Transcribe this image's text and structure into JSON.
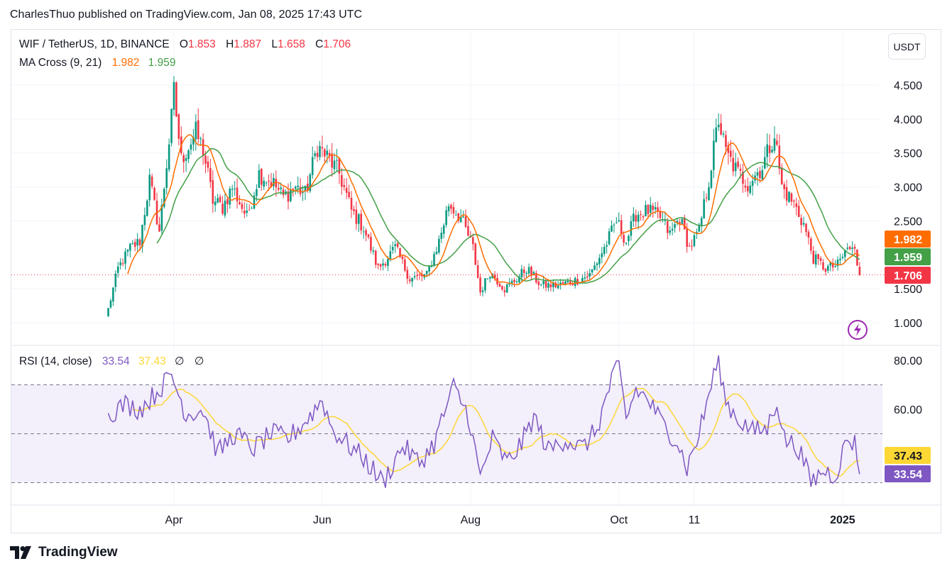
{
  "header": {
    "publish_line": "CharlesThuo published on TradingView.com, Jan 08, 2025 17:43 UTC"
  },
  "legend": {
    "symbol": "WIF / TetherUS, 1D, BINANCE",
    "o_label": "O",
    "o_value": "1.853",
    "h_label": "H",
    "h_value": "1.887",
    "l_label": "L",
    "l_value": "1.658",
    "c_label": "C",
    "c_value": "1.706",
    "ma_label": "MA Cross (9, 21)",
    "ma_fast": "1.982",
    "ma_slow": "1.959",
    "rsi_label": "RSI (14, close)",
    "rsi_value": "33.54",
    "rsi_ma": "37.43",
    "rsi_extra1": "∅",
    "rsi_extra2": "∅"
  },
  "currency_button": "USDT",
  "footer": {
    "brand": "TradingView",
    "logo_icon": "tradingview-logo-icon"
  },
  "colors": {
    "up": "#089981",
    "down": "#f23645",
    "ma_fast": "#ff6d00",
    "ma_slow": "#43a047",
    "rsi": "#7e57c2",
    "rsi_ma": "#fdd835",
    "rsi_band": "#f3effb"
  },
  "chart_data": [
    {
      "type": "candlestick",
      "title": "WIF / TetherUS, 1D, BINANCE",
      "x_ticks": [
        "Apr",
        "Jun",
        "Aug",
        "Oct",
        "11",
        "2025"
      ],
      "x_tick_dates": [
        "2024-04-01",
        "2024-06-01",
        "2024-08-01",
        "2024-10-01",
        "2024-11-01",
        "2025-01-01"
      ],
      "y_ticks": [
        "1.000",
        "1.500",
        "2.500",
        "3.000",
        "3.500",
        "4.000",
        "4.500"
      ],
      "ylim": [
        0.82,
        4.92
      ],
      "x_range": [
        "2024-02-11",
        "2025-02-12"
      ],
      "price_labels": [
        {
          "text": "1.982",
          "value": 1.982,
          "color": "#ff6d00"
        },
        {
          "text": "1.959",
          "value": 1.959,
          "color": "#43a047"
        },
        {
          "text": "1.706",
          "value": 1.706,
          "color": "#f23645"
        }
      ],
      "current_price": 1.706,
      "price_anchors": [
        [
          "2024-03-05",
          1.2
        ],
        [
          "2024-03-09",
          1.8
        ],
        [
          "2024-03-14",
          2.1
        ],
        [
          "2024-03-18",
          2.2
        ],
        [
          "2024-03-22",
          3.1
        ],
        [
          "2024-03-26",
          2.35
        ],
        [
          "2024-03-31",
          4.0
        ],
        [
          "2024-04-01",
          4.4
        ],
        [
          "2024-04-04",
          3.4
        ],
        [
          "2024-04-10",
          3.8
        ],
        [
          "2024-04-13",
          3.55
        ],
        [
          "2024-04-17",
          2.8
        ],
        [
          "2024-04-21",
          2.7
        ],
        [
          "2024-04-25",
          3.0
        ],
        [
          "2024-05-01",
          2.55
        ],
        [
          "2024-05-06",
          3.2
        ],
        [
          "2024-05-12",
          3.05
        ],
        [
          "2024-05-16",
          2.85
        ],
        [
          "2024-05-21",
          3.0
        ],
        [
          "2024-05-25",
          2.9
        ],
        [
          "2024-05-30",
          3.6
        ],
        [
          "2024-06-04",
          3.4
        ],
        [
          "2024-06-08",
          3.2
        ],
        [
          "2024-06-13",
          2.65
        ],
        [
          "2024-06-18",
          2.4
        ],
        [
          "2024-06-24",
          1.8
        ],
        [
          "2024-07-01",
          2.1
        ],
        [
          "2024-07-07",
          1.65
        ],
        [
          "2024-07-14",
          1.7
        ],
        [
          "2024-07-19",
          2.2
        ],
        [
          "2024-07-23",
          2.75
        ],
        [
          "2024-07-28",
          2.55
        ],
        [
          "2024-08-02",
          2.1
        ],
        [
          "2024-08-05",
          1.45
        ],
        [
          "2024-08-09",
          1.75
        ],
        [
          "2024-08-15",
          1.5
        ],
        [
          "2024-08-20",
          1.65
        ],
        [
          "2024-08-24",
          1.8
        ],
        [
          "2024-08-30",
          1.55
        ],
        [
          "2024-09-06",
          1.55
        ],
        [
          "2024-09-13",
          1.62
        ],
        [
          "2024-09-19",
          1.7
        ],
        [
          "2024-09-25",
          2.1
        ],
        [
          "2024-09-30",
          2.5
        ],
        [
          "2024-10-04",
          2.2
        ],
        [
          "2024-10-08",
          2.6
        ],
        [
          "2024-10-13",
          2.65
        ],
        [
          "2024-10-18",
          2.55
        ],
        [
          "2024-10-22",
          2.3
        ],
        [
          "2024-10-26",
          2.55
        ],
        [
          "2024-10-30",
          2.1
        ],
        [
          "2024-11-03",
          2.35
        ],
        [
          "2024-11-07",
          3.1
        ],
        [
          "2024-11-11",
          4.0
        ],
        [
          "2024-11-14",
          3.5
        ],
        [
          "2024-11-19",
          3.2
        ],
        [
          "2024-11-23",
          3.05
        ],
        [
          "2024-11-29",
          3.3
        ],
        [
          "2024-12-04",
          3.8
        ],
        [
          "2024-12-07",
          3.0
        ],
        [
          "2024-12-12",
          2.75
        ],
        [
          "2024-12-16",
          2.45
        ],
        [
          "2024-12-20",
          1.95
        ],
        [
          "2024-12-25",
          1.8
        ],
        [
          "2024-12-30",
          1.85
        ],
        [
          "2025-01-03",
          2.1
        ],
        [
          "2025-01-06",
          2.05
        ],
        [
          "2025-01-08",
          1.706
        ]
      ]
    },
    {
      "type": "line",
      "title": "RSI (14, close)",
      "y_ticks": [
        "60.00",
        "80.00"
      ],
      "ylim": [
        20,
        82
      ],
      "band": [
        30,
        70
      ],
      "midline": 50,
      "value_labels": [
        {
          "text": "37.43",
          "value": 37.43,
          "color": "#fdd835"
        },
        {
          "text": "33.54",
          "value": 33.54,
          "color": "#7e57c2"
        }
      ],
      "rsi_anchors": [
        [
          "2024-03-05",
          58
        ],
        [
          "2024-03-12",
          62
        ],
        [
          "2024-03-18",
          60
        ],
        [
          "2024-03-24",
          66
        ],
        [
          "2024-03-31",
          74
        ],
        [
          "2024-04-06",
          58
        ],
        [
          "2024-04-13",
          60
        ],
        [
          "2024-04-19",
          42
        ],
        [
          "2024-04-26",
          50
        ],
        [
          "2024-05-04",
          44
        ],
        [
          "2024-05-11",
          50
        ],
        [
          "2024-05-18",
          48
        ],
        [
          "2024-05-26",
          56
        ],
        [
          "2024-06-01",
          64
        ],
        [
          "2024-06-05",
          52
        ],
        [
          "2024-06-11",
          46
        ],
        [
          "2024-06-18",
          40
        ],
        [
          "2024-06-26",
          30
        ],
        [
          "2024-07-04",
          45
        ],
        [
          "2024-07-11",
          38
        ],
        [
          "2024-07-17",
          46
        ],
        [
          "2024-07-21",
          58
        ],
        [
          "2024-07-25",
          69
        ],
        [
          "2024-07-31",
          58
        ],
        [
          "2024-08-05",
          32
        ],
        [
          "2024-08-10",
          48
        ],
        [
          "2024-08-16",
          38
        ],
        [
          "2024-08-22",
          46
        ],
        [
          "2024-08-27",
          57
        ],
        [
          "2024-09-02",
          43
        ],
        [
          "2024-09-09",
          48
        ],
        [
          "2024-09-16",
          44
        ],
        [
          "2024-09-22",
          52
        ],
        [
          "2024-09-28",
          72
        ],
        [
          "2024-10-01",
          77
        ],
        [
          "2024-10-04",
          56
        ],
        [
          "2024-10-08",
          68
        ],
        [
          "2024-10-13",
          64
        ],
        [
          "2024-10-19",
          54
        ],
        [
          "2024-10-25",
          47
        ],
        [
          "2024-10-29",
          36
        ],
        [
          "2024-11-03",
          50
        ],
        [
          "2024-11-09",
          74
        ],
        [
          "2024-11-11",
          80
        ],
        [
          "2024-11-14",
          63
        ],
        [
          "2024-11-19",
          56
        ],
        [
          "2024-11-25",
          51
        ],
        [
          "2024-12-01",
          52
        ],
        [
          "2024-12-05",
          64
        ],
        [
          "2024-12-08",
          48
        ],
        [
          "2024-12-14",
          44
        ],
        [
          "2024-12-19",
          30
        ],
        [
          "2024-12-24",
          35
        ],
        [
          "2024-12-29",
          33
        ],
        [
          "2025-01-03",
          48
        ],
        [
          "2025-01-06",
          46
        ],
        [
          "2025-01-08",
          33.54
        ]
      ]
    }
  ]
}
